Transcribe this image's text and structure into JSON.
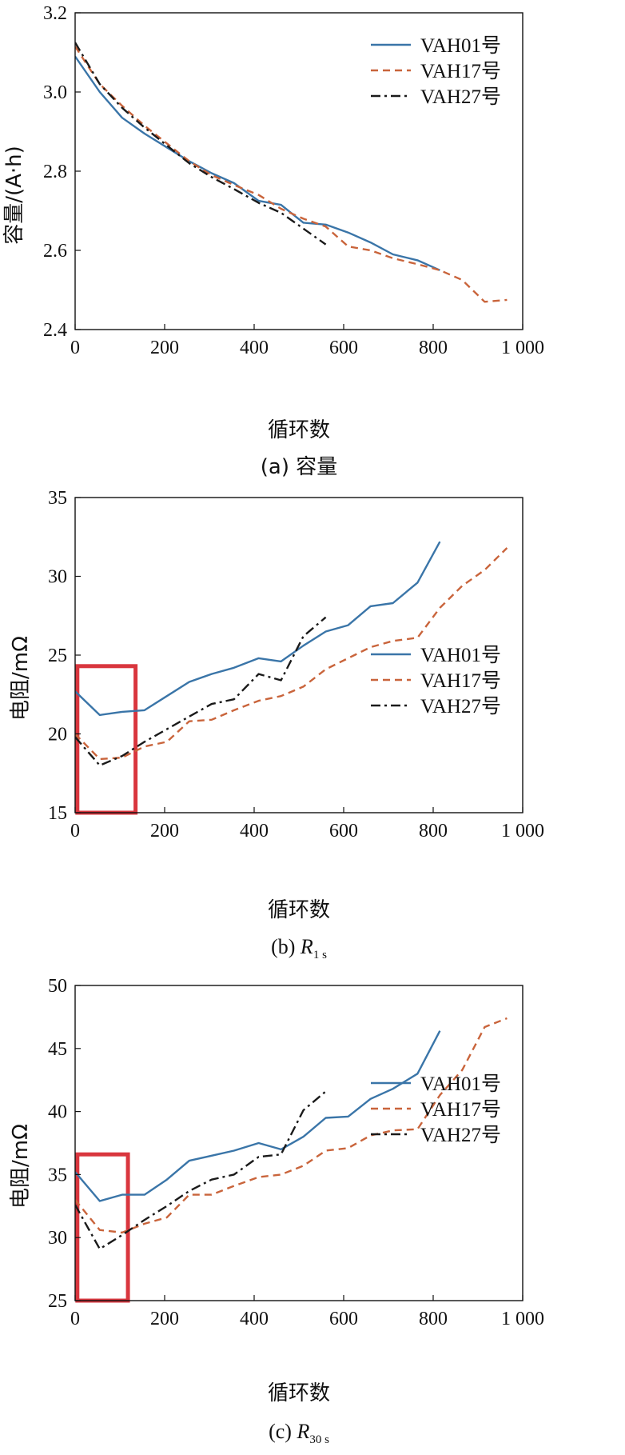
{
  "chart_data": [
    {
      "type": "line",
      "title": "(a) 容量",
      "xlabel": "循环数",
      "ylabel": "容量/(A·h)",
      "xlim": [
        0,
        1000
      ],
      "ylim": [
        2.4,
        3.2
      ],
      "xticks": [
        0,
        200,
        400,
        600,
        800,
        1000
      ],
      "xtick_labels": [
        "0",
        "200",
        "400",
        "600",
        "800",
        "1 000"
      ],
      "yticks": [
        2.4,
        2.6,
        2.8,
        3.0,
        3.2
      ],
      "ytick_labels": [
        "2.4",
        "2.6",
        "2.8",
        "3.0",
        "3.2"
      ],
      "legend_position": "top-right",
      "highlight_box": null,
      "series": [
        {
          "name": "VAH01号",
          "color": "#3a75a8",
          "dash": "solid",
          "x": [
            0,
            55,
            105,
            155,
            205,
            255,
            305,
            355,
            410,
            460,
            510,
            560,
            610,
            660,
            710,
            765,
            815
          ],
          "y": [
            3.09,
            3.0,
            2.935,
            2.895,
            2.86,
            2.825,
            2.795,
            2.77,
            2.725,
            2.715,
            2.67,
            2.665,
            2.645,
            2.62,
            2.59,
            2.575,
            2.55
          ]
        },
        {
          "name": "VAH17号",
          "color": "#c9643b",
          "dash": "dashed",
          "x": [
            0,
            55,
            105,
            155,
            205,
            255,
            305,
            355,
            410,
            460,
            510,
            560,
            610,
            660,
            710,
            765,
            815,
            865,
            915,
            965
          ],
          "y": [
            3.115,
            3.02,
            2.965,
            2.915,
            2.87,
            2.825,
            2.79,
            2.765,
            2.74,
            2.705,
            2.68,
            2.66,
            2.61,
            2.6,
            2.58,
            2.565,
            2.55,
            2.525,
            2.47,
            2.475
          ]
        },
        {
          "name": "VAH27号",
          "color": "#1a1a1a",
          "dash": "dashdot",
          "x": [
            0,
            55,
            105,
            155,
            205,
            255,
            305,
            355,
            410,
            460,
            510,
            560
          ],
          "y": [
            3.125,
            3.02,
            2.96,
            2.91,
            2.865,
            2.82,
            2.785,
            2.755,
            2.72,
            2.695,
            2.655,
            2.615
          ]
        }
      ]
    },
    {
      "type": "line",
      "title": "(b) R1 s",
      "title_prefix": "(b) ",
      "title_var": "R",
      "title_sub": "1 s",
      "xlabel": "循环数",
      "ylabel": "电阻/mΩ",
      "xlim": [
        0,
        1000
      ],
      "ylim": [
        15,
        35
      ],
      "xticks": [
        0,
        200,
        400,
        600,
        800,
        1000
      ],
      "xtick_labels": [
        "0",
        "200",
        "400",
        "600",
        "800",
        "1 000"
      ],
      "yticks": [
        15,
        20,
        25,
        30,
        35
      ],
      "ytick_labels": [
        "15",
        "20",
        "25",
        "30",
        "35"
      ],
      "legend_position": "bottom-right",
      "highlight_box": {
        "x0": 5,
        "x1": 135,
        "y0": 15,
        "y1": 24.3,
        "color": "#d9363e"
      },
      "series": [
        {
          "name": "VAH01号",
          "color": "#3a75a8",
          "dash": "solid",
          "x": [
            0,
            55,
            105,
            155,
            205,
            255,
            305,
            355,
            410,
            460,
            510,
            560,
            610,
            660,
            710,
            765,
            815
          ],
          "y": [
            22.7,
            21.2,
            21.4,
            21.5,
            22.4,
            23.3,
            23.8,
            24.2,
            24.8,
            24.6,
            25.6,
            26.5,
            26.9,
            28.1,
            28.3,
            29.6,
            32.2
          ]
        },
        {
          "name": "VAH17号",
          "color": "#c9643b",
          "dash": "dashed",
          "x": [
            0,
            55,
            105,
            155,
            205,
            255,
            305,
            355,
            410,
            460,
            510,
            560,
            610,
            660,
            710,
            765,
            815,
            865,
            915,
            965
          ],
          "y": [
            20.0,
            18.4,
            18.5,
            19.2,
            19.5,
            20.8,
            20.9,
            21.5,
            22.1,
            22.4,
            23.0,
            24.1,
            24.8,
            25.5,
            25.9,
            26.1,
            28.0,
            29.4,
            30.4,
            31.8
          ]
        },
        {
          "name": "VAH27号",
          "color": "#1a1a1a",
          "dash": "dashdot",
          "x": [
            0,
            55,
            105,
            155,
            205,
            255,
            305,
            355,
            410,
            460,
            510,
            560
          ],
          "y": [
            19.8,
            18.0,
            18.6,
            19.5,
            20.3,
            21.1,
            21.9,
            22.2,
            23.8,
            23.4,
            26.2,
            27.4
          ]
        }
      ]
    },
    {
      "type": "line",
      "title": "(c) R30 s",
      "title_prefix": "(c) ",
      "title_var": "R",
      "title_sub": "30 s",
      "xlabel": "循环数",
      "ylabel": "电阻/mΩ",
      "xlim": [
        0,
        1000
      ],
      "ylim": [
        25,
        50
      ],
      "xticks": [
        0,
        200,
        400,
        600,
        800,
        1000
      ],
      "xtick_labels": [
        "0",
        "200",
        "400",
        "600",
        "800",
        "1 000"
      ],
      "yticks": [
        25,
        30,
        35,
        40,
        45,
        50
      ],
      "ytick_labels": [
        "25",
        "30",
        "35",
        "40",
        "45",
        "50"
      ],
      "legend_position": "bottom-right",
      "highlight_box": {
        "x0": 5,
        "x1": 118,
        "y0": 25,
        "y1": 36.6,
        "color": "#d9363e"
      },
      "series": [
        {
          "name": "VAH01号",
          "color": "#3a75a8",
          "dash": "solid",
          "x": [
            0,
            55,
            105,
            155,
            205,
            255,
            305,
            355,
            410,
            460,
            510,
            560,
            610,
            660,
            710,
            765,
            815
          ],
          "y": [
            35.2,
            32.9,
            33.4,
            33.4,
            34.6,
            36.1,
            36.5,
            36.9,
            37.5,
            37.0,
            38.0,
            39.5,
            39.6,
            41.0,
            41.8,
            43.0,
            46.4
          ]
        },
        {
          "name": "VAH17号",
          "color": "#c9643b",
          "dash": "dashed",
          "x": [
            0,
            55,
            105,
            155,
            205,
            255,
            305,
            355,
            410,
            460,
            510,
            560,
            610,
            660,
            710,
            765,
            815,
            865,
            915,
            965
          ],
          "y": [
            33.0,
            30.6,
            30.4,
            31.1,
            31.6,
            33.4,
            33.4,
            34.1,
            34.8,
            35.0,
            35.7,
            36.9,
            37.1,
            38.1,
            38.5,
            38.6,
            41.3,
            43.3,
            46.7,
            47.4
          ]
        },
        {
          "name": "VAH27号",
          "color": "#1a1a1a",
          "dash": "dashdot",
          "x": [
            0,
            55,
            105,
            155,
            205,
            255,
            305,
            355,
            410,
            460,
            510,
            560
          ],
          "y": [
            32.6,
            29.1,
            30.2,
            31.4,
            32.5,
            33.7,
            34.6,
            35.0,
            36.4,
            36.6,
            40.1,
            41.6
          ]
        }
      ]
    }
  ]
}
